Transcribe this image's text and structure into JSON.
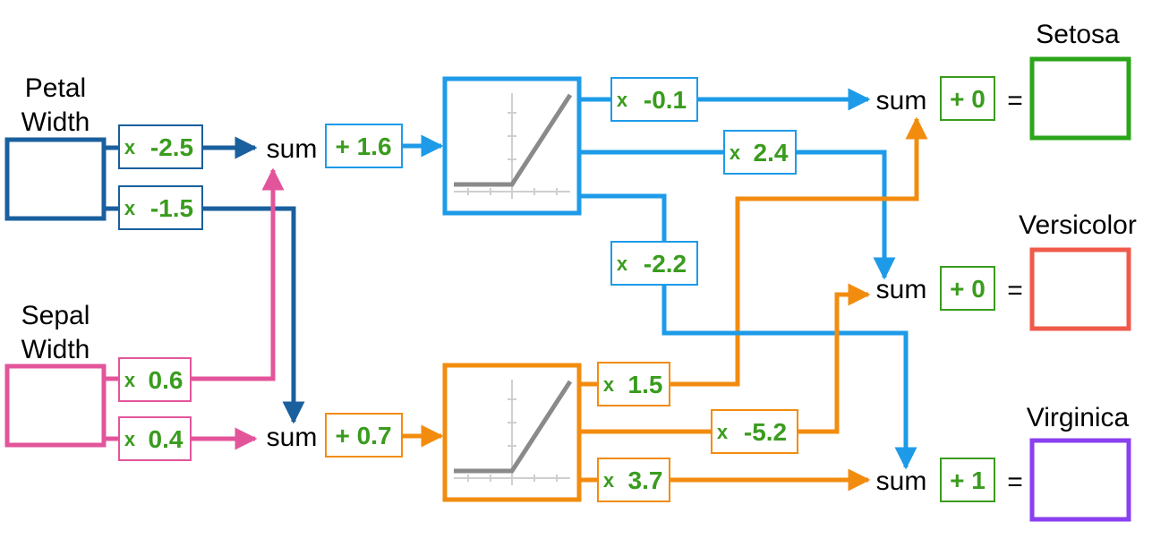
{
  "colors": {
    "petal": "#1a5f9e",
    "sepal": "#e3559b",
    "blue": "#1e9be8",
    "orange": "#f28c0f",
    "weight_text": "#3a9c1e",
    "setosa": "#2ba51a",
    "versicolor": "#ef5a4a",
    "virginica": "#8a3ff0",
    "relu_line": "#8a8a8a"
  },
  "inputs": [
    {
      "id": "petal",
      "label_line1": "Petal",
      "label_line2": "Width"
    },
    {
      "id": "sepal",
      "label_line1": "Sepal",
      "label_line2": "Width"
    }
  ],
  "sum_label": "sum",
  "equals": "=",
  "weight_prefix": "x",
  "first_layer": {
    "petal_to_top": "-2.5",
    "petal_to_bottom": "-1.5",
    "sepal_to_top": "0.6",
    "sepal_to_bottom": "0.4",
    "bias_top": "+ 1.6",
    "bias_bottom": "+ 0.7"
  },
  "second_layer": {
    "top_to_setosa": "-0.1",
    "top_to_versicolor": "2.4",
    "top_to_virginica": "-2.2",
    "bottom_to_setosa": "1.5",
    "bottom_to_versicolor": "-5.2",
    "bottom_to_virginica": "3.7"
  },
  "outputs": [
    {
      "id": "setosa",
      "label": "Setosa",
      "bias": "+ 0"
    },
    {
      "id": "versicolor",
      "label": "Versicolor",
      "bias": "+ 0"
    },
    {
      "id": "virginica",
      "label": "Virginica",
      "bias": "+ 1"
    }
  ]
}
